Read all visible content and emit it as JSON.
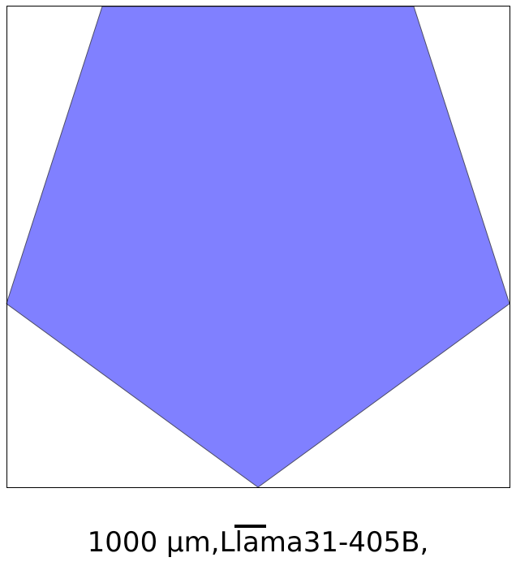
{
  "figure": {
    "frame_color": "#000000",
    "shape": {
      "kind": "pentagon",
      "fill_color": "#8080ff",
      "stroke_color": "#4d4d66"
    },
    "scale_bar_color": "#000000",
    "caption": "1000 μm,Llama31-405B,"
  }
}
